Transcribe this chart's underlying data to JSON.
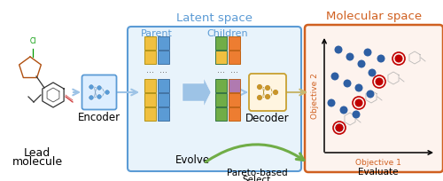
{
  "bg_color": "#ffffff",
  "latent_box_color": "#5b9bd5",
  "latent_box_face": "#e8f3fb",
  "molecular_box_color": "#d06020",
  "molecular_box_face": "#fdf3ee",
  "latent_title": "Latent space",
  "molecular_title": "Molecular space",
  "encoder_label": "Encoder",
  "decoder_label": "Decoder",
  "lead_label1": "Lead",
  "lead_label2": "molecule",
  "evolve_label": "Evolve",
  "pareto_label1": "Pareto-based",
  "pareto_label2": "Select",
  "evaluate_label": "Evaluate",
  "parent_label": "Parent",
  "children_label": "Children",
  "obj1_label": "Objective 1",
  "obj2_label": "Objective 2",
  "yellow_color": "#f0c040",
  "blue_vec_color": "#5b9bd5",
  "green_color": "#70ad47",
  "orange_color": "#ed7d31",
  "purple_color": "#b07ab0",
  "teal_color": "#4bacc6",
  "red_dot_color": "#c00000",
  "dark_blue_dot": "#2e5fa3",
  "arrow_blue": "#9dc3e6",
  "arrow_green": "#70ad47",
  "gold_node": "#c8952a",
  "blue_node": "#5b9bd5",
  "mol_sketch_color": "#aaaaaa"
}
